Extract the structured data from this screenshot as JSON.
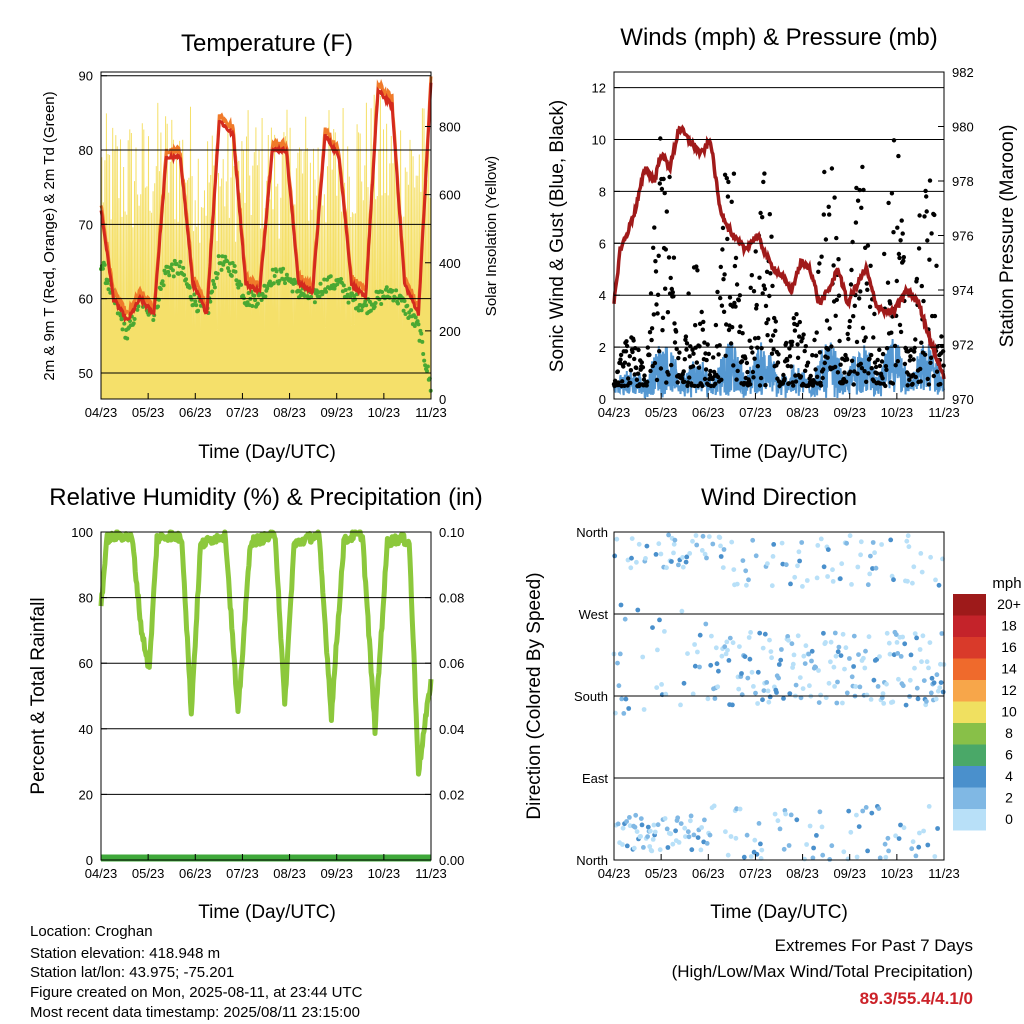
{
  "colors": {
    "temp2m": "#d42a1e",
    "temp9m": "#f07a2a",
    "dewpoint": "#4aa832",
    "solar": "#f5e06a",
    "sonic": "#5598d2",
    "gust": "#000000",
    "pressure": "#a01a1a",
    "rh": "#8cc83c",
    "precip": "#3fa83a",
    "extremes_value": "#cc2229"
  },
  "x_ticks": [
    "04/23",
    "05/23",
    "06/23",
    "07/23",
    "08/23",
    "09/23",
    "10/23",
    "11/23"
  ],
  "chart_data": [
    {
      "id": "temperature",
      "type": "line",
      "title": "Temperature (F)",
      "xlabel": "Time (Day/UTC)",
      "ylabel": "2m & 9m T (Red, Orange) & 2m Td (Green)",
      "y2label": "Solar Insolation (Yellow)",
      "ylim": [
        46.5,
        90.5
      ],
      "y_ticks": [
        "50",
        "60",
        "70",
        "80",
        "90"
      ],
      "y2lim": [
        0,
        960
      ],
      "y2_ticks": [
        "0",
        "200",
        "400",
        "600",
        "800"
      ],
      "x": [
        0,
        8,
        17,
        25,
        34,
        42,
        51,
        59,
        68,
        76,
        85,
        93,
        102,
        110,
        119,
        127,
        136,
        144,
        153,
        161,
        170,
        178,
        187,
        195,
        204,
        212
      ],
      "series": [
        {
          "key": "temp2m",
          "values": [
            72,
            60,
            57,
            60,
            58,
            79,
            79,
            62,
            58,
            84,
            82,
            62,
            61,
            80,
            80,
            62,
            61,
            82,
            79,
            62,
            60,
            88,
            86,
            62,
            58,
            89
          ]
        },
        {
          "key": "dewpoint",
          "values": [
            65,
            60,
            55,
            60,
            58,
            64,
            64,
            60,
            58,
            65,
            64,
            60,
            60,
            63,
            63,
            61,
            60,
            62,
            62,
            60,
            59,
            60,
            61,
            59,
            56,
            48
          ]
        }
      ],
      "solar_peaks": [
        840,
        880,
        830,
        850,
        860,
        900,
        880,
        620
      ]
    },
    {
      "id": "winds",
      "type": "scatter",
      "title": "Winds (mph) & Pressure (mb)",
      "xlabel": "Time (Day/UTC)",
      "ylabel": "Sonic Wind & Gust (Blue, Black)",
      "y2label": "Station Pressure (Maroon)",
      "ylim": [
        0,
        12.6
      ],
      "y_ticks": [
        "0",
        "2",
        "4",
        "6",
        "8",
        "10",
        "12"
      ],
      "y2lim": [
        970,
        982
      ],
      "y2_ticks": [
        "970",
        "972",
        "974",
        "976",
        "978",
        "980",
        "982"
      ],
      "pressure_x": [
        0,
        4,
        8,
        14,
        20,
        26,
        30,
        36,
        42,
        48,
        56,
        62,
        68,
        76,
        84,
        92,
        100,
        108,
        114,
        120,
        126,
        132,
        138,
        144,
        150,
        156,
        162,
        168,
        174,
        180,
        188,
        196,
        204,
        212
      ],
      "pressure": [
        973.5,
        975.5,
        976,
        977,
        978.5,
        978,
        979,
        978.5,
        980,
        979.5,
        979,
        979.5,
        977,
        976,
        975.5,
        976,
        975,
        974.5,
        974,
        975,
        974.8,
        973.5,
        974,
        974.8,
        973.5,
        974.2,
        974.8,
        973.5,
        973.2,
        973.2,
        974,
        973.5,
        972,
        970.8
      ],
      "gust_peaks": [
        2,
        10,
        5,
        9,
        9,
        3,
        9,
        9,
        10,
        9
      ]
    },
    {
      "id": "humidity",
      "type": "line",
      "title": "Relative Humidity (%) & Precipitation (in)",
      "xlabel": "Time (Day/UTC)",
      "ylabel": "Percent & Total Rainfall",
      "ylim": [
        0,
        100
      ],
      "y_ticks": [
        "0",
        "20",
        "40",
        "60",
        "80",
        "100"
      ],
      "y2lim": [
        0,
        0.1
      ],
      "y2_ticks": [
        "0.00",
        "0.02",
        "0.04",
        "0.06",
        "0.08",
        "0.10"
      ],
      "x": [
        0,
        4,
        12,
        20,
        26,
        31,
        36,
        44,
        52,
        58,
        64,
        72,
        80,
        88,
        96,
        104,
        112,
        118,
        124,
        132,
        140,
        148,
        156,
        162,
        168,
        176,
        184,
        192,
        198,
        204,
        212
      ],
      "rh": [
        78,
        98,
        99,
        98,
        70,
        58,
        98,
        99,
        98,
        45,
        96,
        98,
        99,
        44,
        97,
        98,
        99,
        47,
        96,
        98,
        99,
        44,
        97,
        99,
        99,
        40,
        97,
        98,
        97,
        27,
        55
      ],
      "precip_total": 0
    },
    {
      "id": "direction",
      "type": "scatter",
      "title": "Wind Direction",
      "xlabel": "Time (Day/UTC)",
      "ylabel": "Direction (Colored By Speed)",
      "y_ticks": [
        "North",
        "East",
        "South",
        "West",
        "North"
      ],
      "legend": {
        "title": "mph",
        "labels": [
          "20+",
          "18",
          "16",
          "14",
          "12",
          "10",
          "8",
          "6",
          "4",
          "2",
          "0"
        ],
        "colors": [
          "#9e1a1a",
          "#c4232a",
          "#d93a2a",
          "#ef6a2c",
          "#f7a64a",
          "#f0e060",
          "#88c048",
          "#4aa868",
          "#4a90cc",
          "#80b8e4",
          "#b8e0f8"
        ]
      }
    }
  ],
  "info": {
    "location": "Location: Croghan",
    "elevation": "Station elevation: 418.948 m",
    "latlon": "Station lat/lon: 43.975; -75.201",
    "created": "Figure created on Mon, 2025-08-11, at 23:44 UTC",
    "recent": "Most recent data timestamp: 2025/08/11 23:15:00"
  },
  "extremes": {
    "line1": "Extremes For Past 7 Days",
    "line2": "(High/Low/Max Wind/Total Precipitation)",
    "values": "89.3/55.4/4.1/0"
  }
}
